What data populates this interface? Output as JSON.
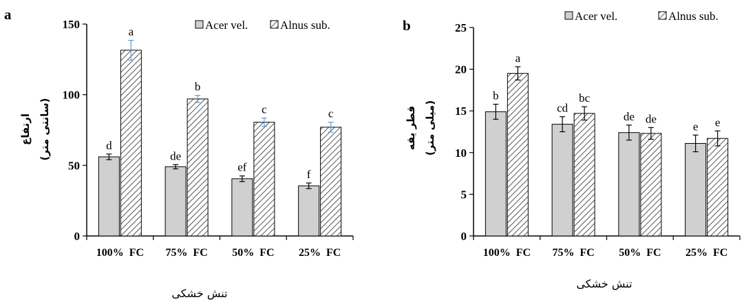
{
  "chart_data": [
    {
      "type": "bar",
      "panel": "a",
      "title": "",
      "xlabel": "تنش خشکی",
      "ylabel": "ارتفاع",
      "ylabel_unit": "(سانتی متر)",
      "categories": [
        "100%  FC",
        "75%  FC",
        "50%  FC",
        "25%  FC"
      ],
      "ylim": [
        0,
        150
      ],
      "yticks": [
        0,
        50,
        100,
        150
      ],
      "legend_position": "top-right",
      "series": [
        {
          "name": "Acer vel.",
          "fill": "#d0d0d0",
          "pattern": "solid",
          "error_color": "#000000",
          "values": [
            56,
            49,
            40.5,
            35.5
          ],
          "errors": [
            2,
            1.5,
            2,
            2
          ],
          "letters": [
            "d",
            "de",
            "ef",
            "f"
          ]
        },
        {
          "name": "Alnus sub.",
          "fill": "#ffffff",
          "pattern": "diagonal-hatch",
          "error_color": "#5b9bd5",
          "values": [
            131.5,
            97,
            80.5,
            77
          ],
          "errors": [
            7,
            2.5,
            3,
            3.5
          ],
          "letters": [
            "a",
            "b",
            "c",
            "c"
          ]
        }
      ]
    },
    {
      "type": "bar",
      "panel": "b",
      "title": "",
      "xlabel": "تنش خشکی",
      "ylabel": "قطر یقه",
      "ylabel_unit": "(میلی متر)",
      "categories": [
        "100%  FC",
        "75%  FC",
        "50%  FC",
        "25%  FC"
      ],
      "ylim": [
        0,
        25
      ],
      "yticks": [
        0,
        5,
        10,
        15,
        20,
        25
      ],
      "legend_position": "top-right",
      "series": [
        {
          "name": "Acer vel.",
          "fill": "#d0d0d0",
          "pattern": "solid",
          "error_color": "#000000",
          "values": [
            14.9,
            13.4,
            12.4,
            11.1
          ],
          "errors": [
            0.9,
            0.9,
            0.9,
            1.0
          ],
          "letters": [
            "b",
            "cd",
            "de",
            "e"
          ]
        },
        {
          "name": "Alnus sub.",
          "fill": "#ffffff",
          "pattern": "diagonal-hatch",
          "error_color": "#000000",
          "values": [
            19.5,
            14.7,
            12.3,
            11.7
          ],
          "errors": [
            0.8,
            0.8,
            0.7,
            0.9
          ],
          "letters": [
            "a",
            "bc",
            "de",
            "e"
          ]
        }
      ]
    }
  ]
}
